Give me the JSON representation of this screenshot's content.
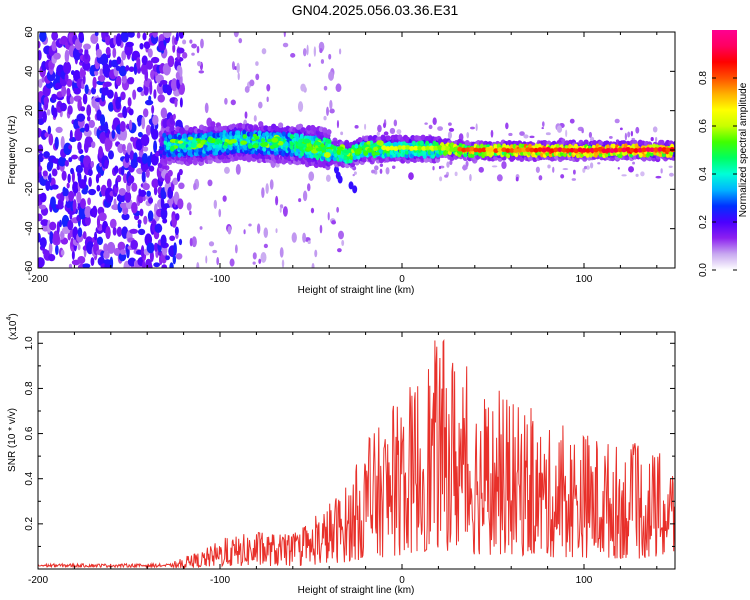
{
  "title": "GN04.2025.056.03.36.E31",
  "chart_data": [
    {
      "type": "heatmap",
      "xlabel": "Height of straight line (km)",
      "ylabel": "Frequency (Hz)",
      "xlim": [
        -200,
        150
      ],
      "ylim": [
        -60,
        60
      ],
      "xticks": [
        -200,
        -100,
        0,
        100
      ],
      "yticks": [
        60,
        40,
        20,
        0,
        -20,
        -40,
        -60
      ],
      "description_series": [
        {
          "name": "dominant frequency band centre (Hz)",
          "x": [
            -130,
            -110,
            -90,
            -70,
            -50,
            -40,
            -30,
            -20,
            0,
            20,
            40,
            60,
            80,
            100,
            120,
            150
          ],
          "y": [
            3,
            3,
            5,
            4,
            2,
            0,
            -2,
            1,
            1,
            1,
            0,
            0,
            0,
            0,
            0,
            0
          ]
        }
      ],
      "colorbar": {
        "label": "Normalized spectral amplitude",
        "range": [
          0.0,
          1.0
        ],
        "ticks": [
          0.0,
          0.2,
          0.4,
          0.6,
          0.8
        ],
        "colors": [
          "#ffffff",
          "#c8a8f0",
          "#8c20f0",
          "#4a00ff",
          "#0030ff",
          "#00b4ff",
          "#00ffd8",
          "#00ff60",
          "#40ff00",
          "#c8ff00",
          "#ffff00",
          "#ffb000",
          "#ff5000",
          "#ff0000",
          "#ff0060",
          "#ff0090"
        ]
      }
    },
    {
      "type": "line",
      "xlabel": "Height of straight line (km)",
      "ylabel": "SNR (10 * v/v)",
      "multiplier_label": "(x10",
      "multiplier_exp": "4",
      "multiplier_close": ")",
      "xlim": [
        -200,
        150
      ],
      "ylim": [
        0.0,
        1.05
      ],
      "xticks": [
        -200,
        -100,
        0,
        100
      ],
      "yticks": [
        0.2,
        0.4,
        0.6,
        0.8,
        1.0
      ],
      "color": "#e8302a",
      "series": [
        {
          "name": "SNR envelope (upper)",
          "x": [
            -200,
            -150,
            -125,
            -110,
            -100,
            -80,
            -60,
            -50,
            -40,
            -30,
            -20,
            -10,
            0,
            10,
            20,
            24,
            30,
            40,
            60,
            80,
            100,
            120,
            140,
            150
          ],
          "values": [
            0.02,
            0.02,
            0.04,
            0.08,
            0.13,
            0.17,
            0.15,
            0.2,
            0.3,
            0.38,
            0.56,
            0.66,
            0.75,
            0.9,
            1.04,
            1.02,
            0.95,
            0.78,
            0.75,
            0.62,
            0.62,
            0.55,
            0.52,
            0.48
          ]
        }
      ]
    }
  ]
}
